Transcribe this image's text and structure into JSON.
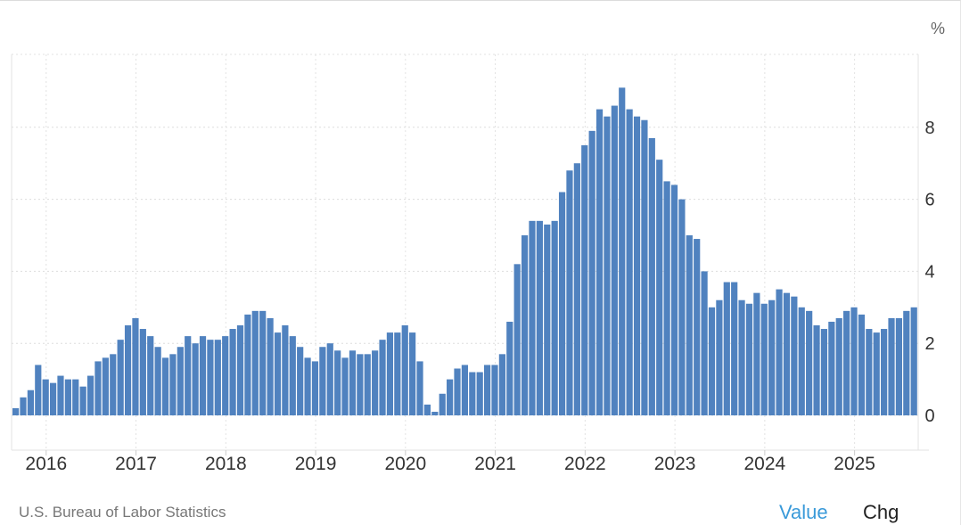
{
  "chart_data": {
    "type": "bar",
    "unit": "%",
    "color": "#5082bf",
    "grid": true,
    "ylim": [
      -1,
      10
    ],
    "yticks": [
      0,
      2,
      4,
      6,
      8
    ],
    "xticks": [
      "2016",
      "2017",
      "2018",
      "2019",
      "2020",
      "2021",
      "2022",
      "2023",
      "2024",
      "2025"
    ],
    "x_start": "2015-09",
    "frequency": "monthly",
    "values": [
      0.2,
      0.5,
      0.7,
      1.4,
      1.0,
      0.9,
      1.1,
      1.0,
      1.0,
      0.8,
      1.1,
      1.5,
      1.6,
      1.7,
      2.1,
      2.5,
      2.7,
      2.4,
      2.2,
      1.9,
      1.6,
      1.7,
      1.9,
      2.2,
      2.0,
      2.2,
      2.1,
      2.1,
      2.2,
      2.4,
      2.5,
      2.8,
      2.9,
      2.9,
      2.7,
      2.3,
      2.5,
      2.2,
      1.9,
      1.6,
      1.5,
      1.9,
      2.0,
      1.8,
      1.6,
      1.8,
      1.7,
      1.7,
      1.8,
      2.1,
      2.3,
      2.3,
      2.5,
      2.3,
      1.5,
      0.3,
      0.1,
      0.6,
      1.0,
      1.3,
      1.4,
      1.2,
      1.2,
      1.4,
      1.4,
      1.7,
      2.6,
      4.2,
      5.0,
      5.4,
      5.4,
      5.3,
      5.4,
      6.2,
      6.8,
      7.0,
      7.5,
      7.9,
      8.5,
      8.3,
      8.6,
      9.1,
      8.5,
      8.3,
      8.2,
      7.7,
      7.1,
      6.5,
      6.4,
      6.0,
      5.0,
      4.9,
      4.0,
      3.0,
      3.2,
      3.7,
      3.7,
      3.2,
      3.1,
      3.4,
      3.1,
      3.2,
      3.5,
      3.4,
      3.3,
      3.0,
      2.9,
      2.5,
      2.4,
      2.6,
      2.7,
      2.9,
      3.0,
      2.8,
      2.4,
      2.3,
      2.4,
      2.7,
      2.7,
      2.9,
      3.0
    ]
  },
  "source_text": "U.S. Bureau of Labor Statistics",
  "tabs": {
    "value_label": "Value",
    "chg_label": "Chg",
    "active": "Value"
  }
}
